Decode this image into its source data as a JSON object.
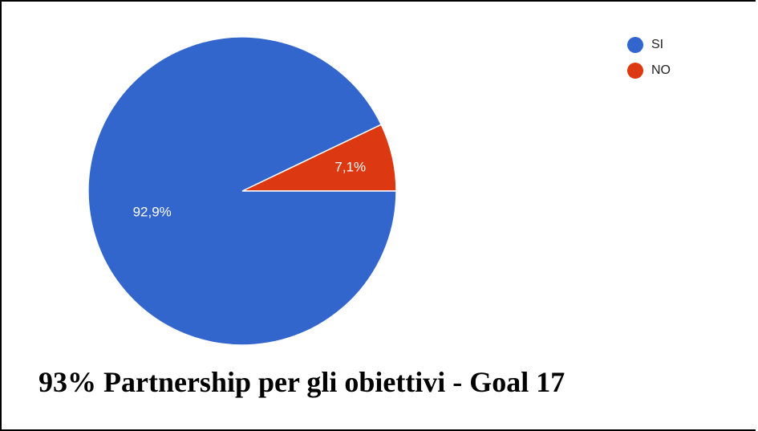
{
  "chart_data": {
    "type": "pie",
    "categories": [
      "SI",
      "NO"
    ],
    "values": [
      92.9,
      7.1
    ],
    "slice_labels": [
      "92,9%",
      "7,1%"
    ],
    "colors": [
      "#3366CC",
      "#DC3912"
    ],
    "legend_position": "top-right",
    "caption": "93%  Partnership per gli obiettivi - Goal 17"
  }
}
